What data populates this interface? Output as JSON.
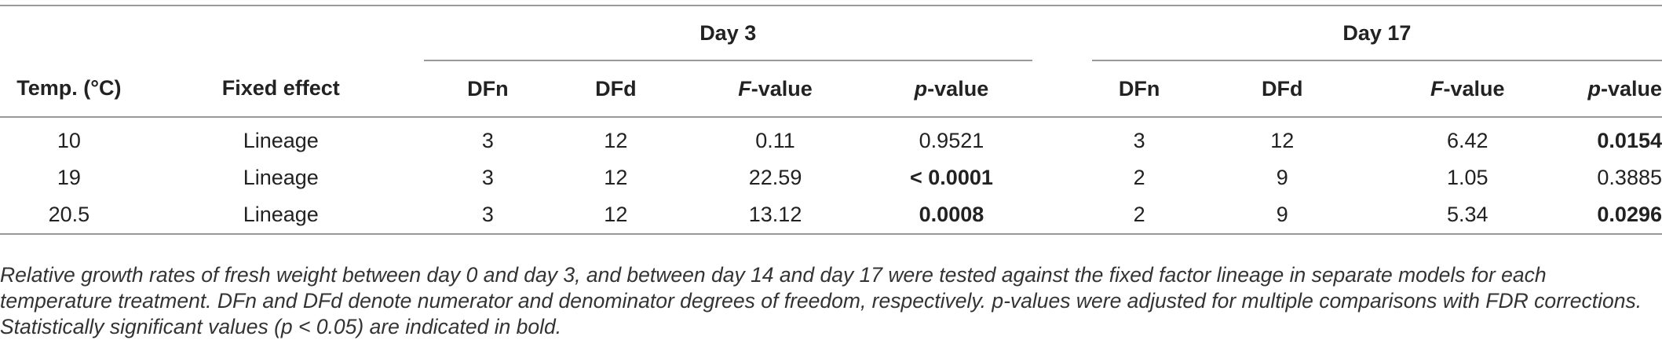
{
  "table": {
    "group_headers": [
      "Day 3",
      "Day 17"
    ],
    "columns": [
      [
        {
          "text": "Temp. (°C)"
        }
      ],
      [
        {
          "text": "Fixed effect"
        }
      ],
      [
        {
          "text": "DFn"
        }
      ],
      [
        {
          "text": "DFd"
        }
      ],
      [
        {
          "text": "F",
          "italic": true
        },
        {
          "text": "-value"
        }
      ],
      [
        {
          "text": "p",
          "italic": true
        },
        {
          "text": "-value"
        }
      ],
      [
        {
          "text": "DFn"
        }
      ],
      [
        {
          "text": "DFd"
        }
      ],
      [
        {
          "text": "F",
          "italic": true
        },
        {
          "text": "-value"
        }
      ],
      [
        {
          "text": "p",
          "italic": true
        },
        {
          "text": "-value"
        }
      ]
    ],
    "rows": [
      [
        "10",
        "Lineage",
        "3",
        "12",
        "0.11",
        "0.9521",
        "3",
        "12",
        "6.42",
        "0.0154"
      ],
      [
        "19",
        "Lineage",
        "3",
        "12",
        "22.59",
        "< 0.0001",
        "2",
        "9",
        "1.05",
        "0.3885"
      ],
      [
        "20.5",
        "Lineage",
        "3",
        "12",
        "13.12",
        "0.0008",
        "2",
        "9",
        "5.34",
        "0.0296"
      ]
    ],
    "bold": [
      [
        false,
        false,
        false,
        false,
        false,
        false,
        false,
        false,
        false,
        true
      ],
      [
        false,
        false,
        false,
        false,
        false,
        true,
        false,
        false,
        false,
        false
      ],
      [
        false,
        false,
        false,
        false,
        false,
        true,
        false,
        false,
        false,
        true
      ]
    ]
  },
  "footnote": "Relative growth rates of fresh weight between day 0 and day 3, and between day 14 and day 17 were tested against the fixed factor lineage in separate models for each temperature treatment. DFn and DFd denote numerator and denominator degrees of freedom, respectively. p-values were adjusted for multiple comparisons with FDR corrections. Statistically significant values (p < 0.05) are indicated in bold."
}
